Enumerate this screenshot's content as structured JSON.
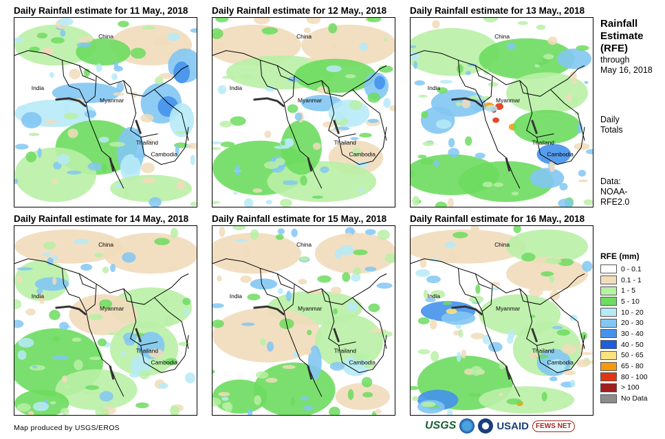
{
  "panels": [
    {
      "title": "Daily Rainfall estimate for 11 May., 2018"
    },
    {
      "title": "Daily Rainfall estimate for 12 May., 2018"
    },
    {
      "title": "Daily Rainfall estimate for 13 May., 2018"
    },
    {
      "title": "Daily Rainfall estimate for 14 May., 2018"
    },
    {
      "title": "Daily Rainfall estimate for 15 May., 2018"
    },
    {
      "title": "Daily Rainfall estimate for 16 May., 2018"
    }
  ],
  "places": {
    "china": "China",
    "india": "India",
    "myanmar": "Myanmar",
    "thailand": "Thailand",
    "cambodia": "Cambodia"
  },
  "sidebar": {
    "title_line1": "Rainfall",
    "title_line2": "Estimate",
    "title_line3": "(RFE)",
    "through": "through",
    "through_date": "May 16, 2018",
    "daily": "Daily",
    "totals": "Totals",
    "data_label": "Data:",
    "data_src1": "NOAA-",
    "data_src2": "RFE2.0"
  },
  "legend": {
    "title": "RFE (mm)",
    "items": [
      {
        "label": "0 - 0.1",
        "color": "#ffffff"
      },
      {
        "label": "0.1 - 1",
        "color": "#f1dcbb"
      },
      {
        "label": "1 - 5",
        "color": "#b9f0a6"
      },
      {
        "label": "5 - 10",
        "color": "#6ddc5f"
      },
      {
        "label": "10 - 20",
        "color": "#b7eaf7"
      },
      {
        "label": "20 - 30",
        "color": "#83c7f3"
      },
      {
        "label": "30 - 40",
        "color": "#4592eb"
      },
      {
        "label": "40 - 50",
        "color": "#1c5fdc"
      },
      {
        "label": "50 - 65",
        "color": "#fbe27b"
      },
      {
        "label": "65 - 80",
        "color": "#f59a0f"
      },
      {
        "label": "80 - 100",
        "color": "#e13513"
      },
      {
        "label": "> 100",
        "color": "#a01e1e"
      },
      {
        "label": "No Data",
        "color": "#8c8c8c"
      }
    ]
  },
  "credit": "Map produced by USGS/EROS",
  "logos": {
    "usgs": "USGS",
    "usaid": "USAID",
    "fews": "FEWS NET"
  }
}
